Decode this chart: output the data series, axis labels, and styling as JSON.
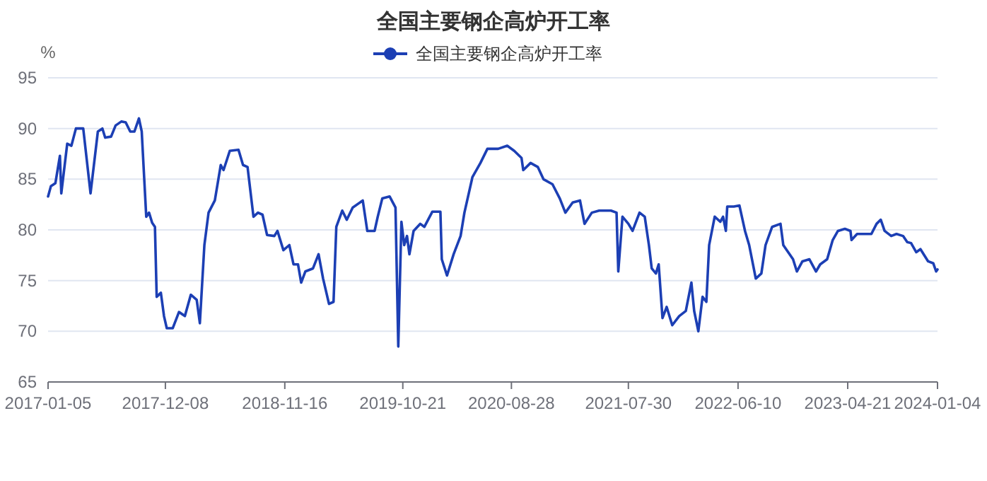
{
  "chart_data": {
    "type": "line",
    "title": "全国主要钢企高炉开工率",
    "ylabel": "%",
    "legend": "top",
    "grid": "y",
    "marker": "none",
    "line_style": "solid",
    "xlim": [
      "2017-01-05",
      "2024-01-04"
    ],
    "xticks": [
      "2017-01-05",
      "2017-12-08",
      "2018-11-16",
      "2019-10-21",
      "2020-08-28",
      "2021-07-30",
      "2022-06-10",
      "2023-04-21",
      "2024-01-04"
    ],
    "ylim": [
      65,
      95
    ],
    "yticks": [
      65,
      70,
      75,
      80,
      85,
      90,
      95
    ],
    "x": [
      "2017-01-05",
      "2017-01-13",
      "2017-01-26",
      "2017-02-08",
      "2017-02-12",
      "2017-03-01",
      "2017-03-13",
      "2017-03-26",
      "2017-04-16",
      "2017-05-07",
      "2017-05-28",
      "2017-06-10",
      "2017-06-18",
      "2017-07-05",
      "2017-07-18",
      "2017-08-04",
      "2017-08-16",
      "2017-08-29",
      "2017-09-10",
      "2017-09-23",
      "2017-10-01",
      "2017-10-14",
      "2017-10-22",
      "2017-10-31",
      "2017-11-08",
      "2017-11-13",
      "2017-11-25",
      "2017-12-04",
      "2017-12-12",
      "2017-12-29",
      "2018-01-16",
      "2018-02-02",
      "2018-02-19",
      "2018-03-08",
      "2018-03-17",
      "2018-03-30",
      "2018-04-11",
      "2018-04-29",
      "2018-05-16",
      "2018-05-24",
      "2018-06-11",
      "2018-07-06",
      "2018-07-19",
      "2018-08-01",
      "2018-08-18",
      "2018-08-31",
      "2018-09-13",
      "2018-09-26",
      "2018-10-17",
      "2018-10-26",
      "2018-11-12",
      "2018-11-29",
      "2018-12-11",
      "2018-12-24",
      "2019-01-02",
      "2019-01-14",
      "2019-02-05",
      "2019-02-21",
      "2019-03-06",
      "2019-03-23",
      "2019-04-05",
      "2019-04-13",
      "2019-04-30",
      "2019-05-13",
      "2019-05-30",
      "2019-06-28",
      "2019-07-11",
      "2019-08-01",
      "2019-08-10",
      "2019-08-23",
      "2019-09-13",
      "2019-09-30",
      "2019-10-08",
      "2019-10-17",
      "2019-10-25",
      "2019-11-02",
      "2019-11-09",
      "2019-11-21",
      "2019-12-10",
      "2019-12-22",
      "2020-01-14",
      "2020-02-06",
      "2020-02-10",
      "2020-02-25",
      "2020-03-15",
      "2020-04-04",
      "2020-04-15",
      "2020-05-08",
      "2020-05-31",
      "2020-06-20",
      "2020-07-21",
      "2020-08-16",
      "2020-09-05",
      "2020-09-26",
      "2020-10-01",
      "2020-10-22",
      "2020-11-12",
      "2020-11-28",
      "2020-12-24",
      "2021-01-14",
      "2021-01-30",
      "2021-02-20",
      "2021-03-13",
      "2021-03-26",
      "2021-04-16",
      "2021-05-07",
      "2021-06-10",
      "2021-06-26",
      "2021-07-01",
      "2021-07-13",
      "2021-07-30",
      "2021-08-11",
      "2021-08-31",
      "2021-09-15",
      "2021-09-27",
      "2021-10-05",
      "2021-10-17",
      "2021-10-25",
      "2021-11-05",
      "2021-11-17",
      "2021-12-03",
      "2021-12-23",
      "2022-01-11",
      "2022-01-27",
      "2022-02-04",
      "2022-02-16",
      "2022-02-28",
      "2022-03-11",
      "2022-03-19",
      "2022-04-04",
      "2022-04-20",
      "2022-04-28",
      "2022-05-06",
      "2022-05-10",
      "2022-05-29",
      "2022-06-14",
      "2022-06-30",
      "2022-07-12",
      "2022-07-31",
      "2022-08-16",
      "2022-08-28",
      "2022-09-16",
      "2022-10-10",
      "2022-10-18",
      "2022-11-15",
      "2022-11-26",
      "2022-12-12",
      "2023-01-01",
      "2023-01-20",
      "2023-02-01",
      "2023-02-21",
      "2023-03-09",
      "2023-03-24",
      "2023-04-13",
      "2023-04-29",
      "2023-05-02",
      "2023-05-18",
      "2023-06-05",
      "2023-06-28",
      "2023-07-13",
      "2023-07-25",
      "2023-08-05",
      "2023-08-24",
      "2023-09-08",
      "2023-09-27",
      "2023-10-09",
      "2023-10-20",
      "2023-11-04",
      "2023-11-16",
      "2023-12-08",
      "2023-12-23",
      "2023-12-31",
      "2024-01-04"
    ],
    "series": [
      {
        "name": "全国主要钢企高炉开工率",
        "color": "#1c3fb4",
        "values": [
          83.3,
          84.3,
          84.6,
          87.3,
          83.6,
          88.5,
          88.3,
          90.0,
          90.0,
          83.6,
          89.7,
          90.0,
          89.1,
          89.2,
          90.3,
          90.7,
          90.6,
          89.7,
          89.7,
          91.0,
          89.7,
          81.3,
          81.7,
          80.7,
          80.3,
          73.4,
          73.8,
          71.5,
          70.3,
          70.3,
          71.9,
          71.5,
          73.6,
          73.1,
          70.8,
          78.5,
          81.7,
          82.9,
          86.4,
          85.9,
          87.8,
          87.9,
          86.4,
          86.2,
          81.3,
          81.7,
          81.5,
          79.5,
          79.4,
          79.9,
          78.0,
          78.5,
          76.6,
          76.6,
          74.8,
          75.9,
          76.2,
          77.6,
          75.2,
          72.7,
          72.9,
          80.3,
          81.9,
          81.0,
          82.2,
          82.9,
          79.9,
          79.9,
          81.3,
          83.1,
          83.3,
          82.2,
          68.5,
          80.8,
          78.5,
          79.4,
          77.6,
          79.9,
          80.6,
          80.3,
          81.8,
          81.8,
          77.1,
          75.5,
          77.6,
          79.4,
          81.7,
          85.2,
          86.6,
          88.0,
          88.0,
          88.3,
          87.8,
          87.1,
          85.9,
          86.6,
          86.2,
          85.0,
          84.5,
          83.1,
          81.7,
          82.7,
          82.9,
          80.6,
          81.7,
          81.9,
          81.9,
          81.7,
          75.9,
          81.3,
          80.6,
          79.9,
          81.7,
          81.3,
          78.5,
          76.2,
          75.7,
          76.6,
          71.3,
          72.4,
          70.6,
          71.5,
          72.0,
          74.8,
          72.0,
          70.0,
          73.4,
          72.9,
          78.5,
          81.3,
          80.8,
          81.3,
          79.9,
          82.3,
          82.3,
          82.4,
          79.9,
          78.5,
          75.2,
          75.7,
          78.5,
          80.3,
          80.6,
          78.5,
          77.1,
          75.9,
          76.9,
          77.1,
          75.9,
          76.6,
          77.1,
          79.0,
          79.9,
          80.1,
          79.9,
          79.0,
          79.6,
          79.6,
          79.6,
          80.6,
          81.0,
          79.9,
          79.4,
          79.6,
          79.4,
          78.8,
          78.7,
          77.8,
          78.1,
          76.9,
          76.7,
          75.9,
          76.1
        ]
      }
    ]
  }
}
